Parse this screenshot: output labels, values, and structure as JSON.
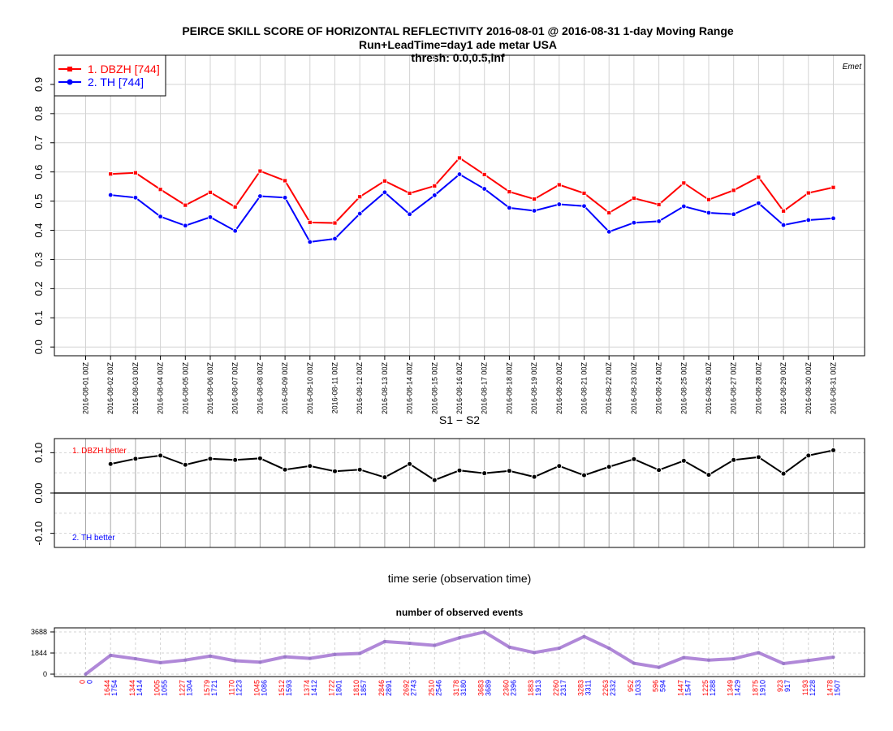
{
  "header": {
    "title_line1": "PEIRCE SKILL SCORE OF HORIZONTAL REFLECTIVITY 2016-08-01 @ 2016-08-31 1-day Moving Range",
    "title_line2": "Run+LeadTime=day1 ade metar USA",
    "title_line3": "thresh: 0.0,0.5,inf",
    "credit": "Emet"
  },
  "colors": {
    "series1": "#ff0000",
    "series2": "#0000ff",
    "diff": "#000000",
    "events": "#b088d8"
  },
  "chart_data": [
    {
      "type": "line",
      "x": [
        "2016-08-01 00Z",
        "2016-08-02 00Z",
        "2016-08-03 00Z",
        "2016-08-04 00Z",
        "2016-08-05 00Z",
        "2016-08-06 00Z",
        "2016-08-07 00Z",
        "2016-08-08 00Z",
        "2016-08-09 00Z",
        "2016-08-10 00Z",
        "2016-08-11 00Z",
        "2016-08-12 00Z",
        "2016-08-13 00Z",
        "2016-08-14 00Z",
        "2016-08-15 00Z",
        "2016-08-16 00Z",
        "2016-08-17 00Z",
        "2016-08-18 00Z",
        "2016-08-19 00Z",
        "2016-08-20 00Z",
        "2016-08-21 00Z",
        "2016-08-22 00Z",
        "2016-08-23 00Z",
        "2016-08-24 00Z",
        "2016-08-25 00Z",
        "2016-08-26 00Z",
        "2016-08-27 00Z",
        "2016-08-28 00Z",
        "2016-08-29 00Z",
        "2016-08-30 00Z",
        "2016-08-31 00Z"
      ],
      "series": [
        {
          "name": "1. DBZH [744]",
          "values": [
            null,
            0.593,
            0.597,
            0.54,
            0.486,
            0.53,
            0.48,
            0.603,
            0.57,
            0.427,
            0.425,
            0.515,
            0.569,
            0.527,
            0.552,
            0.648,
            0.591,
            0.532,
            0.507,
            0.556,
            0.527,
            0.46,
            0.51,
            0.488,
            0.562,
            0.505,
            0.537,
            0.582,
            0.466,
            0.528,
            0.547
          ]
        },
        {
          "name": "2. TH [744]",
          "values": [
            null,
            0.521,
            0.512,
            0.447,
            0.416,
            0.445,
            0.398,
            0.517,
            0.512,
            0.36,
            0.371,
            0.457,
            0.53,
            0.455,
            0.52,
            0.592,
            0.542,
            0.477,
            0.467,
            0.489,
            0.483,
            0.395,
            0.426,
            0.431,
            0.482,
            0.46,
            0.455,
            0.493,
            0.418,
            0.435,
            0.441
          ]
        }
      ],
      "yticks": [
        "0.0",
        "0.1",
        "0.2",
        "0.3",
        "0.4",
        "0.5",
        "0.6",
        "0.7",
        "0.8",
        "0.9"
      ],
      "ylim": [
        -0.03,
        1.0
      ],
      "grid": true,
      "legend_position": "top-left"
    },
    {
      "type": "line",
      "title": "S1 − S2",
      "xlabel": "time serie (observation time)",
      "series": [
        {
          "values": [
            null,
            0.072,
            0.085,
            0.093,
            0.07,
            0.085,
            0.082,
            0.086,
            0.058,
            0.067,
            0.054,
            0.058,
            0.039,
            0.072,
            0.032,
            0.056,
            0.049,
            0.055,
            0.04,
            0.067,
            0.044,
            0.065,
            0.084,
            0.057,
            0.08,
            0.045,
            0.082,
            0.089,
            0.048,
            0.093,
            0.106
          ]
        }
      ],
      "annotations": [
        "1. DBZH  better",
        "2. TH  better"
      ],
      "yticks": [
        "-0.10",
        "0.00",
        "0.10"
      ],
      "ylim": [
        -0.135,
        0.135
      ],
      "grid": true
    },
    {
      "type": "line",
      "title": "number of observed events",
      "values": [
        0,
        1644,
        1344,
        1005,
        1227,
        1579,
        1170,
        1045,
        1512,
        1374,
        1722,
        1810,
        2846,
        2692,
        2510,
        3178,
        3683,
        2360,
        1883,
        2260,
        3283,
        2263,
        952,
        596,
        1447,
        1225,
        1349,
        1875,
        923,
        1193,
        1478
      ],
      "labels_series1": [
        "0",
        "1644",
        "1344",
        "1005",
        "1227",
        "1579",
        "1170",
        "1045",
        "1512",
        "1374",
        "1722",
        "1810",
        "2846",
        "2692",
        "2510",
        "3178",
        "3683",
        "2360",
        "1883",
        "2260",
        "3283",
        "2263",
        "952",
        "596",
        "1447",
        "1225",
        "1349",
        "1875",
        "923",
        "1193",
        "1478"
      ],
      "labels_series2": [
        "0",
        "1754",
        "1414",
        "1055",
        "1304",
        "1721",
        "1223",
        "1086",
        "1593",
        "1412",
        "1801",
        "1857",
        "2891",
        "2743",
        "2546",
        "3180",
        "3689",
        "2396",
        "1913",
        "2317",
        "3311",
        "2332",
        "1033",
        "594",
        "1547",
        "1288",
        "1429",
        "1910",
        "917",
        "1228",
        "1507"
      ],
      "yticks": [
        "0",
        "1844",
        "3688"
      ],
      "ylim": [
        0,
        3688
      ],
      "grid": true
    }
  ]
}
